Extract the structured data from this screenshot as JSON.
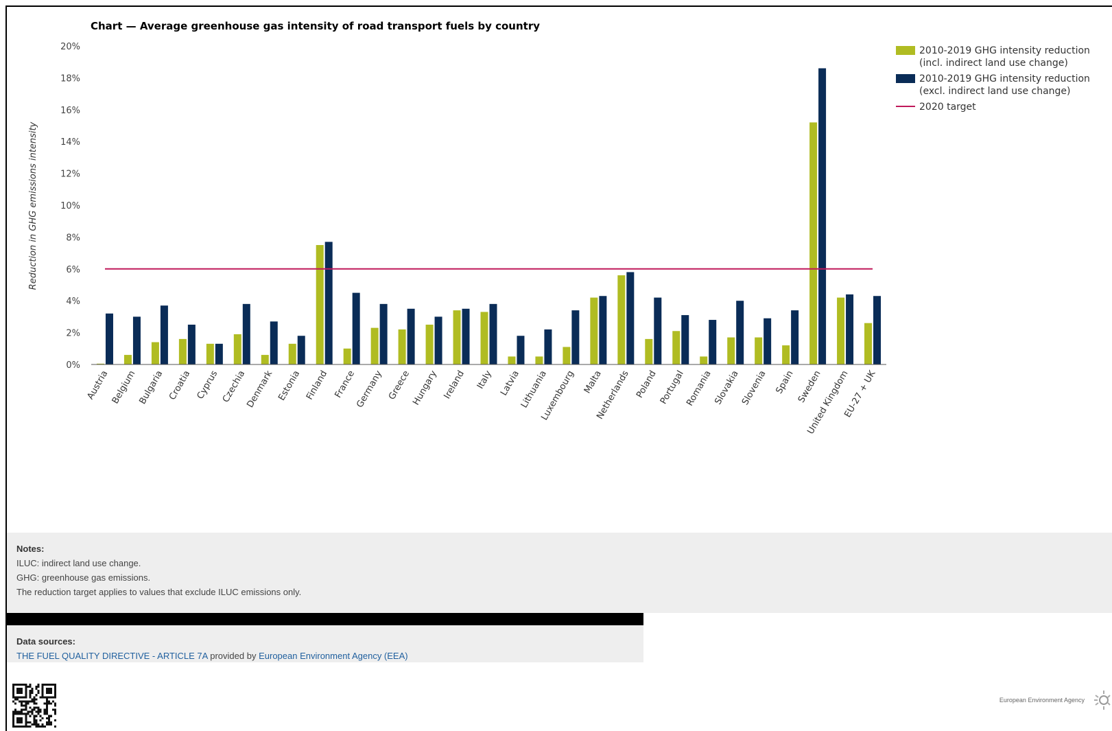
{
  "chart_data": {
    "type": "bar",
    "title": "Chart — Average greenhouse gas intensity of road transport fuels by country",
    "ylabel": "Reduction in GHG emissions intensity",
    "xlabel": "",
    "ylim": [
      0,
      20
    ],
    "yticks": [
      "0%",
      "2%",
      "4%",
      "6%",
      "8%",
      "10%",
      "12%",
      "14%",
      "16%",
      "18%",
      "20%"
    ],
    "grid": false,
    "legend_position": "top-right",
    "categories": [
      "Austria",
      "Belgium",
      "Bulgaria",
      "Croatia",
      "Cyprus",
      "Czechia",
      "Denmark",
      "Estonia",
      "Finland",
      "France",
      "Germany",
      "Greece",
      "Hungary",
      "Ireland",
      "Italy",
      "Latvia",
      "Lithuania",
      "Luxembourg",
      "Malta",
      "Netherlands",
      "Poland",
      "Portugal",
      "Romania",
      "Slovakia",
      "Slovenia",
      "Spain",
      "Sweden",
      "United Kingdom",
      "EU-27 + UK"
    ],
    "series": [
      {
        "name": "2010-2019 GHG intensity reduction (incl. indirect land use change)",
        "legend_lines": [
          "2010-2019 GHG intensity reduction",
          "(incl. indirect land use change)"
        ],
        "color": "#b0bc22",
        "values": [
          0.05,
          0.6,
          1.4,
          1.6,
          1.3,
          1.9,
          0.6,
          1.3,
          7.5,
          1.0,
          2.3,
          2.2,
          2.5,
          3.4,
          3.3,
          0.5,
          0.5,
          1.1,
          4.2,
          5.6,
          1.6,
          2.1,
          0.5,
          1.7,
          1.7,
          1.2,
          15.2,
          4.2,
          2.6
        ]
      },
      {
        "name": "2010-2019 GHG intensity reduction (excl. indirect land use change)",
        "legend_lines": [
          "2010-2019 GHG intensity reduction",
          "(excl. indirect land use change)"
        ],
        "color": "#0a2c57",
        "values": [
          3.2,
          3.0,
          3.7,
          2.5,
          1.3,
          3.8,
          2.7,
          1.8,
          7.7,
          4.5,
          3.8,
          3.5,
          3.0,
          3.5,
          3.8,
          1.8,
          2.2,
          3.4,
          4.3,
          5.8,
          4.2,
          3.1,
          2.8,
          4.0,
          2.9,
          3.4,
          18.6,
          4.4,
          4.3
        ]
      }
    ],
    "target": {
      "name": "2020 target",
      "value": 6,
      "color": "#c0185a"
    }
  },
  "notes": {
    "heading": "Notes:",
    "lines": [
      "ILUC: indirect land use change.",
      "GHG: greenhouse gas emissions.",
      "The reduction target applies to values that exclude ILUC emissions only."
    ]
  },
  "sources": {
    "heading": "Data sources:",
    "link1": "THE FUEL QUALITY DIRECTIVE - ARTICLE 7A",
    "middle": "provided by",
    "link2": "European Environment Agency (EEA)"
  },
  "footer": {
    "logo_name": "European Environment Agency",
    "qr_icon": "qr-code-icon",
    "logo_icon": "eea-sun-logo-icon"
  }
}
